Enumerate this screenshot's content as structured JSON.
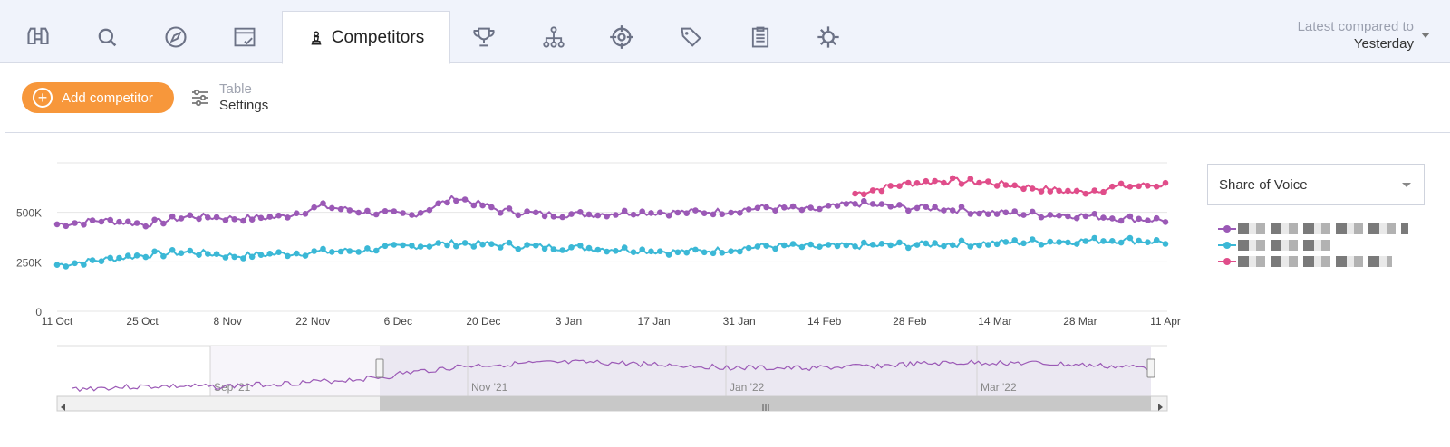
{
  "nav": {
    "tabs": [
      {
        "name": "binoculars-icon"
      },
      {
        "name": "search-icon"
      },
      {
        "name": "compass-icon"
      },
      {
        "name": "browser-check-icon"
      },
      {
        "name": "chess-pawn-icon",
        "label": "Competitors",
        "active": true
      },
      {
        "name": "trophy-icon"
      },
      {
        "name": "sitemap-icon"
      },
      {
        "name": "crosshair-icon"
      },
      {
        "name": "tags-icon"
      },
      {
        "name": "clipboard-list-icon"
      },
      {
        "name": "gear-refresh-icon"
      }
    ],
    "compare_label": "Latest compared to",
    "compare_value": "Yesterday"
  },
  "toolbar": {
    "add_competitor_label": "Add competitor",
    "table_label": "Table",
    "settings_label": "Settings"
  },
  "metric_select": {
    "value": "Share of Voice"
  },
  "legend": [
    {
      "color": "#9b59b6"
    },
    {
      "color": "#3bb8d6"
    },
    {
      "color": "#e04d8a"
    }
  ],
  "chart_data": {
    "type": "line",
    "x_labels": [
      "11 Oct",
      "25 Oct",
      "8 Nov",
      "22 Nov",
      "6 Dec",
      "20 Dec",
      "3 Jan",
      "17 Jan",
      "31 Jan",
      "14 Feb",
      "28 Feb",
      "14 Mar",
      "28 Mar",
      "11 Apr"
    ],
    "y_ticks": [
      "0",
      "250K",
      "500K"
    ],
    "ylim": [
      0,
      750000
    ],
    "grid": true,
    "navigator_labels": [
      "Sep '21",
      "Nov '21",
      "Jan '22",
      "Mar '22"
    ],
    "series": [
      {
        "color": "#9b59b6",
        "anchors": [
          [
            0,
            440000
          ],
          [
            1,
            460000
          ],
          [
            2,
            440000
          ],
          [
            3,
            480000
          ],
          [
            4,
            470000
          ],
          [
            5,
            475000
          ],
          [
            6,
            530000
          ],
          [
            7,
            500000
          ],
          [
            8,
            485000
          ],
          [
            9,
            575000
          ],
          [
            10,
            510000
          ],
          [
            11,
            490000
          ],
          [
            12,
            490000
          ],
          [
            13,
            500000
          ],
          [
            14,
            500000
          ],
          [
            15,
            505000
          ],
          [
            16,
            525000
          ],
          [
            17,
            510000
          ],
          [
            18,
            545000
          ],
          [
            19,
            525000
          ],
          [
            20,
            520000
          ],
          [
            21,
            500000
          ],
          [
            22,
            490000
          ],
          [
            23,
            485000
          ],
          [
            24,
            470000
          ],
          [
            25,
            460000
          ]
        ]
      },
      {
        "color": "#3bb8d6",
        "anchors": [
          [
            0,
            235000
          ],
          [
            1,
            260000
          ],
          [
            2,
            285000
          ],
          [
            3,
            300000
          ],
          [
            4,
            280000
          ],
          [
            5,
            290000
          ],
          [
            6,
            300000
          ],
          [
            7,
            310000
          ],
          [
            8,
            330000
          ],
          [
            9,
            345000
          ],
          [
            10,
            335000
          ],
          [
            11,
            325000
          ],
          [
            12,
            320000
          ],
          [
            13,
            310000
          ],
          [
            14,
            300000
          ],
          [
            15,
            310000
          ],
          [
            16,
            330000
          ],
          [
            17,
            325000
          ],
          [
            18,
            330000
          ],
          [
            19,
            335000
          ],
          [
            20,
            340000
          ],
          [
            21,
            345000
          ],
          [
            22,
            350000
          ],
          [
            23,
            355000
          ],
          [
            24,
            360000
          ],
          [
            25,
            350000
          ]
        ]
      },
      {
        "color": "#e04d8a",
        "anchors": [
          [
            18,
            595000
          ],
          [
            19,
            640000
          ],
          [
            20,
            660000
          ],
          [
            21,
            650000
          ],
          [
            22,
            625000
          ],
          [
            23,
            600000
          ],
          [
            24,
            630000
          ],
          [
            25,
            640000
          ]
        ]
      }
    ]
  }
}
